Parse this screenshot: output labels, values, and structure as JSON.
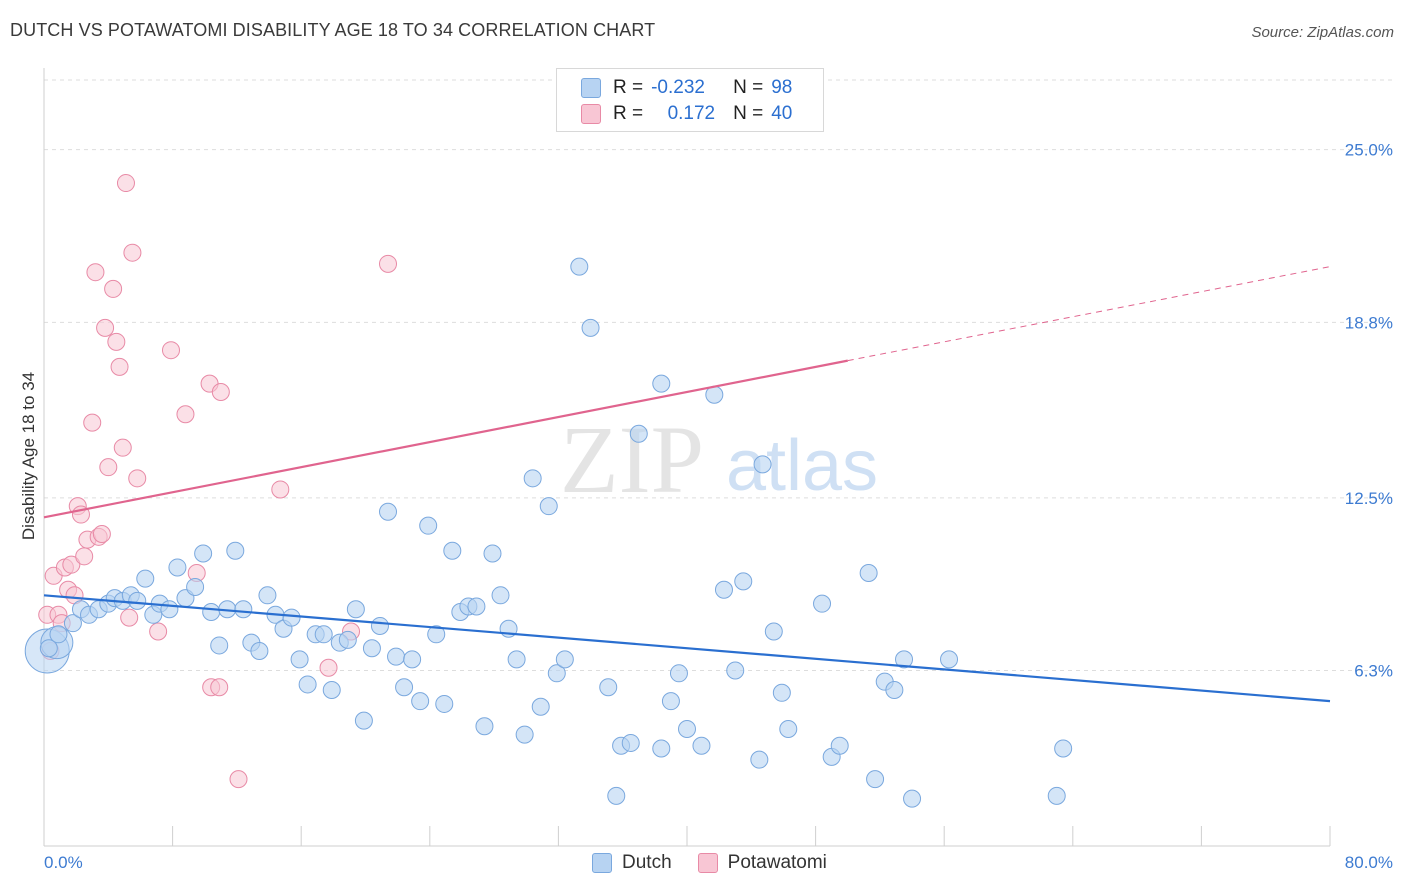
{
  "header": {
    "title": "DUTCH VS POTAWATOMI DISABILITY AGE 18 TO 34 CORRELATION CHART",
    "source": "Source: ZipAtlas.com"
  },
  "watermark": {
    "zip": "ZIP",
    "atlas": "atlas"
  },
  "legend": {
    "dutch": {
      "r_label": "R =",
      "r_value": "-0.232",
      "n_label": "N =",
      "n_value": "98"
    },
    "potawatomi": {
      "r_label": "R =",
      "r_value": "0.172",
      "n_label": "N =",
      "n_value": "40"
    }
  },
  "bottom_legend": {
    "dutch": "Dutch",
    "potawatomi": "Potawatomi"
  },
  "colors": {
    "dutch_fill": "#b7d3f2",
    "dutch_stroke": "#7aa8de",
    "dutch_line": "#2a6fd0",
    "pota_fill": "#f8c6d4",
    "pota_stroke": "#e88aa6",
    "pota_line": "#e0648e",
    "tick_text": "#3d7bd1",
    "grid": "#dddddd"
  },
  "chart_data": {
    "type": "scatter",
    "title": "DUTCH VS POTAWATOMI DISABILITY AGE 18 TO 34 CORRELATION CHART",
    "xlabel": "",
    "ylabel": "Disability Age 18 to 34",
    "xlim": [
      0,
      80
    ],
    "ylim": [
      0,
      27.5
    ],
    "x_tick_labels": [
      "0.0%",
      "80.0%"
    ],
    "y_ticks": [
      6.3,
      12.5,
      18.8,
      25.0
    ],
    "y_tick_labels": [
      "6.3%",
      "12.5%",
      "18.8%",
      "25.0%"
    ],
    "grid": "horizontal dashed",
    "legend_position": "top-center",
    "series": [
      {
        "name": "Dutch",
        "R": -0.232,
        "N": 98,
        "trend": {
          "x": [
            0,
            80
          ],
          "y": [
            9.0,
            5.2
          ]
        },
        "points": [
          [
            0.3,
            7.1
          ],
          [
            0.9,
            7.6
          ],
          [
            1.8,
            8.0
          ],
          [
            2.3,
            8.5
          ],
          [
            2.8,
            8.3
          ],
          [
            3.4,
            8.5
          ],
          [
            4.0,
            8.7
          ],
          [
            4.4,
            8.9
          ],
          [
            4.9,
            8.8
          ],
          [
            5.4,
            9.0
          ],
          [
            5.8,
            8.8
          ],
          [
            6.3,
            9.6
          ],
          [
            6.8,
            8.3
          ],
          [
            7.2,
            8.7
          ],
          [
            7.8,
            8.5
          ],
          [
            8.3,
            10.0
          ],
          [
            8.8,
            8.9
          ],
          [
            9.4,
            9.3
          ],
          [
            9.9,
            10.5
          ],
          [
            10.4,
            8.4
          ],
          [
            10.9,
            7.2
          ],
          [
            11.4,
            8.5
          ],
          [
            11.9,
            10.6
          ],
          [
            12.4,
            8.5
          ],
          [
            12.9,
            7.3
          ],
          [
            13.4,
            7.0
          ],
          [
            13.9,
            9.0
          ],
          [
            14.4,
            8.3
          ],
          [
            14.9,
            7.8
          ],
          [
            15.4,
            8.2
          ],
          [
            15.9,
            6.7
          ],
          [
            16.4,
            5.8
          ],
          [
            16.9,
            7.6
          ],
          [
            17.4,
            7.6
          ],
          [
            17.9,
            5.6
          ],
          [
            18.4,
            7.3
          ],
          [
            18.9,
            7.4
          ],
          [
            19.4,
            8.5
          ],
          [
            19.9,
            4.5
          ],
          [
            20.4,
            7.1
          ],
          [
            20.9,
            7.9
          ],
          [
            21.4,
            12.0
          ],
          [
            21.9,
            6.8
          ],
          [
            22.4,
            5.7
          ],
          [
            22.9,
            6.7
          ],
          [
            23.4,
            5.2
          ],
          [
            23.9,
            11.5
          ],
          [
            24.4,
            7.6
          ],
          [
            24.9,
            5.1
          ],
          [
            25.4,
            10.6
          ],
          [
            25.9,
            8.4
          ],
          [
            26.4,
            8.6
          ],
          [
            26.9,
            8.6
          ],
          [
            27.4,
            4.3
          ],
          [
            27.9,
            10.5
          ],
          [
            28.4,
            9.0
          ],
          [
            28.9,
            7.8
          ],
          [
            29.4,
            6.7
          ],
          [
            29.9,
            4.0
          ],
          [
            30.4,
            13.2
          ],
          [
            30.9,
            5.0
          ],
          [
            31.4,
            12.2
          ],
          [
            31.9,
            6.2
          ],
          [
            32.4,
            6.7
          ],
          [
            33.3,
            20.8
          ],
          [
            34.0,
            18.6
          ],
          [
            35.1,
            5.7
          ],
          [
            35.6,
            1.8
          ],
          [
            35.9,
            3.6
          ],
          [
            36.5,
            3.7
          ],
          [
            37.0,
            14.8
          ],
          [
            38.4,
            3.5
          ],
          [
            38.4,
            16.6
          ],
          [
            39.0,
            5.2
          ],
          [
            39.5,
            6.2
          ],
          [
            40.0,
            4.2
          ],
          [
            40.9,
            3.6
          ],
          [
            41.7,
            16.2
          ],
          [
            42.3,
            9.2
          ],
          [
            43.0,
            6.3
          ],
          [
            43.5,
            9.5
          ],
          [
            44.5,
            3.1
          ],
          [
            44.7,
            13.7
          ],
          [
            45.4,
            7.7
          ],
          [
            45.9,
            5.5
          ],
          [
            46.3,
            4.2
          ],
          [
            48.4,
            8.7
          ],
          [
            49.0,
            3.2
          ],
          [
            49.5,
            3.6
          ],
          [
            51.3,
            9.8
          ],
          [
            51.7,
            2.4
          ],
          [
            52.3,
            5.9
          ],
          [
            52.9,
            5.6
          ],
          [
            53.5,
            6.7
          ],
          [
            54.0,
            1.7
          ],
          [
            56.3,
            6.7
          ],
          [
            63.0,
            1.8
          ],
          [
            63.4,
            3.5
          ]
        ],
        "large_points": [
          [
            0.2,
            7.0
          ],
          [
            0.8,
            7.3
          ]
        ]
      },
      {
        "name": "Potawatomi",
        "R": 0.172,
        "N": 40,
        "trend": {
          "x": [
            0,
            80
          ],
          "y": [
            11.8,
            20.8
          ],
          "solid_until_x": 50
        },
        "points": [
          [
            0.2,
            8.3
          ],
          [
            0.4,
            7.0
          ],
          [
            0.6,
            9.7
          ],
          [
            0.9,
            8.3
          ],
          [
            1.1,
            8.0
          ],
          [
            1.3,
            10.0
          ],
          [
            1.5,
            9.2
          ],
          [
            1.7,
            10.1
          ],
          [
            1.9,
            9.0
          ],
          [
            2.1,
            12.2
          ],
          [
            2.3,
            11.9
          ],
          [
            2.5,
            10.4
          ],
          [
            2.7,
            11.0
          ],
          [
            3.0,
            15.2
          ],
          [
            3.2,
            20.6
          ],
          [
            3.4,
            11.1
          ],
          [
            3.6,
            11.2
          ],
          [
            3.8,
            18.6
          ],
          [
            4.0,
            13.6
          ],
          [
            4.3,
            20.0
          ],
          [
            4.5,
            18.1
          ],
          [
            4.7,
            17.2
          ],
          [
            4.9,
            14.3
          ],
          [
            5.1,
            23.8
          ],
          [
            5.3,
            8.2
          ],
          [
            5.5,
            21.3
          ],
          [
            5.8,
            13.2
          ],
          [
            7.1,
            7.7
          ],
          [
            7.9,
            17.8
          ],
          [
            8.8,
            15.5
          ],
          [
            9.5,
            9.8
          ],
          [
            10.3,
            16.6
          ],
          [
            10.4,
            5.7
          ],
          [
            10.9,
            5.7
          ],
          [
            11.0,
            16.3
          ],
          [
            12.1,
            2.4
          ],
          [
            14.7,
            12.8
          ],
          [
            17.7,
            6.4
          ],
          [
            19.1,
            7.7
          ],
          [
            21.4,
            20.9
          ]
        ]
      }
    ]
  }
}
